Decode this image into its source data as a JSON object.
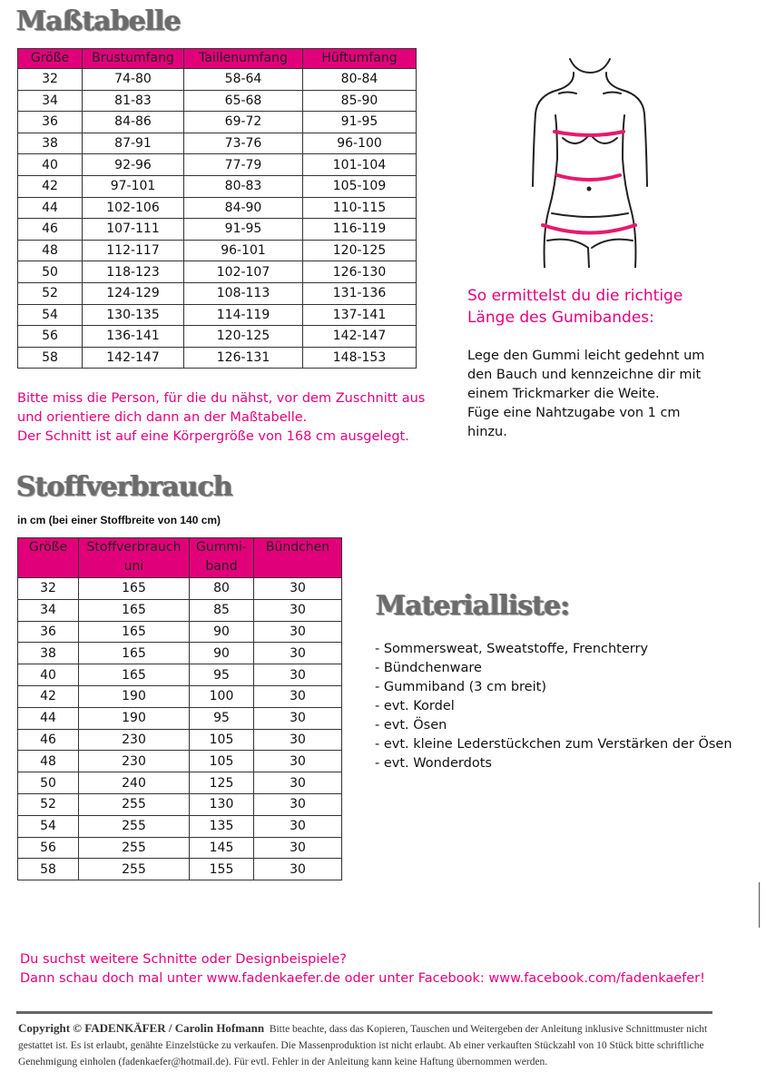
{
  "size_chart": {
    "title": "Maßtabelle",
    "headers": [
      "Größe",
      "Brustumfang",
      "Taillenumfang",
      "Hüftumfang"
    ],
    "rows": [
      [
        "32",
        "74-80",
        "58-64",
        "80-84"
      ],
      [
        "34",
        "81-83",
        "65-68",
        "85-90"
      ],
      [
        "36",
        "84-86",
        "69-72",
        "91-95"
      ],
      [
        "38",
        "87-91",
        "73-76",
        "96-100"
      ],
      [
        "40",
        "92-96",
        "77-79",
        "101-104"
      ],
      [
        "42",
        "97-101",
        "80-83",
        "105-109"
      ],
      [
        "44",
        "102-106",
        "84-90",
        "110-115"
      ],
      [
        "46",
        "107-111",
        "91-95",
        "116-119"
      ],
      [
        "48",
        "112-117",
        "96-101",
        "120-125"
      ],
      [
        "50",
        "118-123",
        "102-107",
        "126-130"
      ],
      [
        "52",
        "124-129",
        "108-113",
        "131-136"
      ],
      [
        "54",
        "130-135",
        "114-119",
        "137-141"
      ],
      [
        "56",
        "136-141",
        "120-125",
        "142-147"
      ],
      [
        "58",
        "142-147",
        "126-131",
        "148-153"
      ]
    ],
    "note_lines": [
      "Bitte miss die Person, für die du nähst, vor dem Zuschnitt aus",
      "und orientiere dich dann an der Maßtabelle.",
      "Der Schnitt ist auf eine Körpergröße von 168 cm ausgelegt."
    ]
  },
  "elastic": {
    "heading_lines": [
      "So ermittelst du die richtige",
      "Länge des Gumibandes:"
    ],
    "body_lines": [
      "Lege den Gummi leicht gedehnt um",
      "den Bauch und kennzeichne dir mit",
      "einem Trickmarker die Weite.",
      "Füge eine Nahtzugabe von 1 cm",
      "hinzu."
    ]
  },
  "fabric": {
    "title": "Stoffverbrauch",
    "subtitle": "in cm (bei einer Stoffbreite von 140 cm)",
    "headers": [
      [
        "Größe"
      ],
      [
        "Stoffverbrauch",
        "uni"
      ],
      [
        "Gummi-",
        "band"
      ],
      [
        "Bündchen"
      ]
    ],
    "rows": [
      [
        "32",
        "165",
        "80",
        "30"
      ],
      [
        "34",
        "165",
        "85",
        "30"
      ],
      [
        "36",
        "165",
        "90",
        "30"
      ],
      [
        "38",
        "165",
        "90",
        "30"
      ],
      [
        "40",
        "165",
        "95",
        "30"
      ],
      [
        "42",
        "190",
        "100",
        "30"
      ],
      [
        "44",
        "190",
        "95",
        "30"
      ],
      [
        "46",
        "230",
        "105",
        "30"
      ],
      [
        "48",
        "230",
        "105",
        "30"
      ],
      [
        "50",
        "240",
        "125",
        "30"
      ],
      [
        "52",
        "255",
        "130",
        "30"
      ],
      [
        "54",
        "255",
        "135",
        "30"
      ],
      [
        "56",
        "255",
        "145",
        "30"
      ],
      [
        "58",
        "255",
        "155",
        "30"
      ]
    ]
  },
  "materials": {
    "title": "Materialliste:",
    "items": [
      "- Sommersweat, Sweatstoffe, Frenchterry",
      "- Bündchenware",
      "- Gummiband (3 cm breit)",
      "- evt. Kordel",
      "- evt. Ösen",
      "- evt. kleine Lederstückchen zum Verstärken der Ösen",
      "- evt. Wonderdots"
    ]
  },
  "promo_lines": [
    "Du suchst weitere Schnitte oder Designbeispiele?",
    "Dann schau doch mal unter www.fadenkaefer.de oder unter Facebook: www.facebook.com/fadenkaefer!"
  ],
  "footer": {
    "copyright": "Copyright © FADENKÄFER / Carolin Hofmann",
    "text": "Bitte beachte, dass das Kopieren, Tauschen und Weitergeben der Anleitung inklusive Schnittmuster nicht gestattet ist. Es ist erlaubt, genähte Einzelstücke zu verkaufen. Die Massenproduktion ist nicht erlaubt. Ab einer verkauften Stückzahl von 10 Stück bitte schriftliche Genehmigung einholen (fadenkaefer@hotmail.de). Für evtl. Fehler in der Anleitung kann keine Haftung übernommen werden."
  },
  "colors": {
    "accent": "#e2007a",
    "title_gray": "#6b6b6b"
  }
}
